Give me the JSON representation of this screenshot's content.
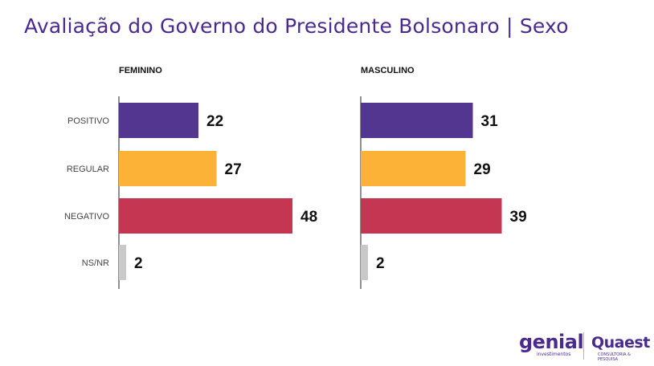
{
  "title": "Avaliação do Governo do Presidente Bolsonaro | Sexo",
  "chart_data": {
    "type": "bar",
    "orientation": "horizontal",
    "categories": [
      "POSITIVO",
      "REGULAR",
      "NEGATIVO",
      "NS/NR"
    ],
    "panels": [
      {
        "name": "FEMININO",
        "values": [
          22,
          27,
          48,
          2
        ]
      },
      {
        "name": "MASCULINO",
        "values": [
          31,
          29,
          39,
          2
        ]
      }
    ],
    "colors": [
      "#52368f",
      "#fbb236",
      "#c43651",
      "#c9c9c9"
    ],
    "grid": false,
    "data_labels": true
  },
  "logos": {
    "genial": "genial",
    "genial_sub": "investimentos",
    "quaest": "Quaest",
    "quaest_sub": "CONSULTORIA & PESQUISA"
  }
}
